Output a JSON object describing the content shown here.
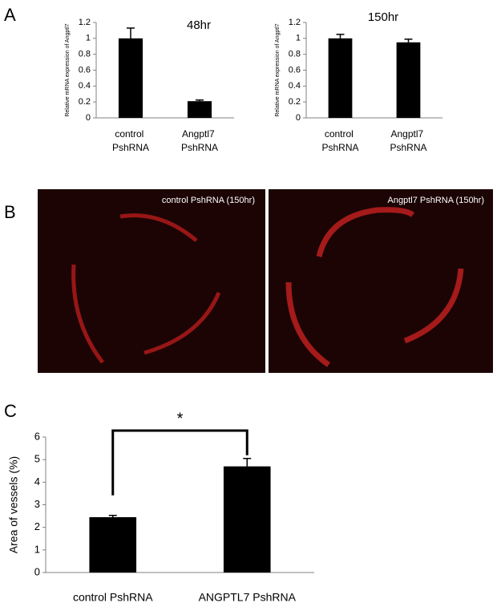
{
  "panel_labels": [
    "A",
    "B",
    "C"
  ],
  "image_captions": [
    "control PshRNA (150hr)",
    "Angptl7 PshRNA (150hr)"
  ],
  "chart_data": [
    {
      "type": "bar",
      "title": "48hr",
      "y_label": "Relative mRNA expression of Angptl7",
      "categories": [
        "control PshRNA",
        "Angptl7 PshRNA"
      ],
      "values": [
        1.0,
        0.21
      ],
      "errors": [
        0.13,
        0.015
      ],
      "color": "#000000",
      "ylim": [
        0,
        1.2
      ],
      "yticks": [
        0,
        0.2,
        0.4,
        0.6,
        0.8,
        1,
        1.2
      ],
      "grid": false
    },
    {
      "type": "bar",
      "title": "150hr",
      "y_label": "Relative mRNA expression of Angptl7",
      "categories": [
        "control PshRNA",
        "Angptl7 PshRNA"
      ],
      "values": [
        1.0,
        0.95
      ],
      "errors": [
        0.05,
        0.04
      ],
      "color": "#000000",
      "ylim": [
        0,
        1.2
      ],
      "yticks": [
        0,
        0.2,
        0.4,
        0.6,
        0.8,
        1,
        1.2
      ],
      "grid": false
    },
    {
      "type": "bar",
      "y_label": "Area of vessels (%)",
      "significance": "*",
      "categories": [
        "control PshRNA",
        "ANGPTL7 PshRNA"
      ],
      "values": [
        2.45,
        4.7
      ],
      "errors": [
        0.08,
        0.35
      ],
      "color": "#000000",
      "ylim": [
        0,
        6
      ],
      "yticks": [
        0,
        1,
        2,
        3,
        4,
        5,
        6
      ],
      "grid": false
    }
  ]
}
